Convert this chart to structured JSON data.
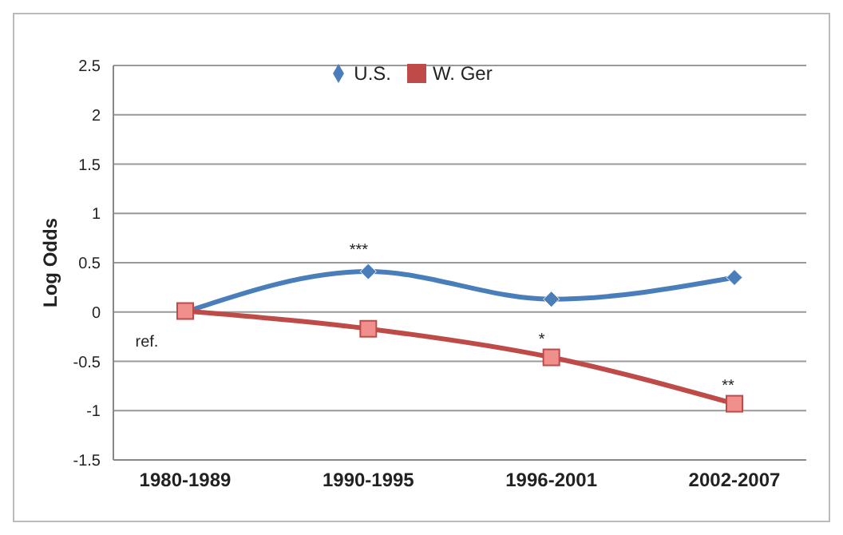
{
  "chart_data": {
    "type": "line",
    "ylabel": "Log Odds",
    "categories": [
      "1980-1989",
      "1990-1995",
      "1996-2001",
      "2002-2007"
    ],
    "series": [
      {
        "name": "U.S.",
        "color": "#4a7ebb",
        "values": [
          0,
          0.41,
          0.13,
          0.35
        ],
        "marker": "diamond"
      },
      {
        "name": "W. Ger",
        "color": "#be4b48",
        "values": [
          0.01,
          -0.17,
          -0.46,
          -0.93
        ],
        "marker": "square"
      }
    ],
    "ylim": [
      -1.5,
      2.5
    ],
    "yticks": [
      -1.5,
      -1,
      -0.5,
      0,
      0.5,
      1,
      1.5,
      2,
      2.5
    ],
    "grid": "y",
    "legend": "top",
    "annotations": [
      {
        "text": "ref.",
        "x": "1980-1989",
        "y": 0
      },
      {
        "text": "***",
        "x": "1990-1995",
        "y": 0.41
      },
      {
        "text": "*",
        "x": "1996-2001",
        "y": -0.46
      },
      {
        "text": "**",
        "x": "2002-2007",
        "y": -0.93
      }
    ]
  }
}
